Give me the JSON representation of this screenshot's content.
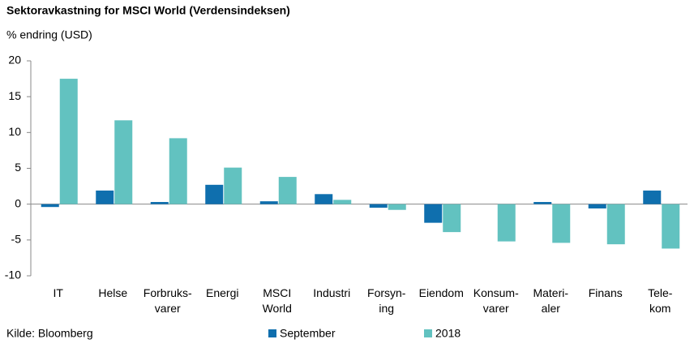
{
  "chart_data": {
    "type": "bar",
    "title": "Sektoravkastning for MSCI World (Verdensindeksen)",
    "subtitle": "% endring (USD)",
    "source": "Kilde: Bloomberg",
    "categories": [
      "IT",
      "Helse",
      "Forbruks-\nvarer",
      "Energi",
      "MSCI\nWorld",
      "Industri",
      "Forsyn-\ning",
      "Eiendom",
      "Konsum-\nvarer",
      "Materi-\naler",
      "Finans",
      "Tele-\nkom"
    ],
    "series": [
      {
        "name": "September",
        "color": "#0f6fae",
        "values": [
          -0.4,
          1.9,
          0.3,
          2.7,
          0.4,
          1.4,
          -0.5,
          -2.6,
          0,
          0.3,
          -0.6,
          1.9
        ]
      },
      {
        "name": "2018",
        "color": "#62c2c0",
        "values": [
          17.5,
          11.7,
          9.2,
          5.1,
          3.8,
          0.6,
          -0.8,
          -3.9,
          -5.2,
          -5.4,
          -5.6,
          -6.2
        ]
      }
    ],
    "ylim": [
      -10,
      20
    ],
    "yticks": [
      -10,
      -5,
      0,
      5,
      10,
      15,
      20
    ],
    "grid": false
  }
}
